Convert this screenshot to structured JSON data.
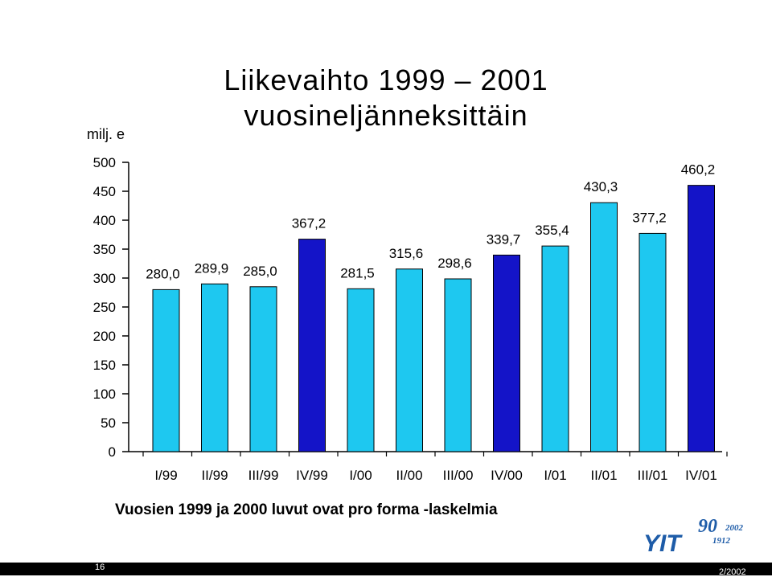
{
  "title_line1": "Liikevaihto 1999 – 2001",
  "title_line2": "vuosineljänneksittäin",
  "unit": "milj. e",
  "footnote": "Vuosien 1999 ja 2000 luvut ovat pro forma -laskelmia",
  "page_number": "16",
  "footer_date": "2/2002",
  "logo": {
    "text": "YIT",
    "anniversary": "90",
    "years_top": "2002",
    "years_bottom": "1912"
  },
  "colors": {
    "light_bar": "#1ec8f0",
    "dark_bar": "#1414c8",
    "logo_blue": "#1e5ca8"
  },
  "chart_data": {
    "type": "bar",
    "title": "Liikevaihto 1999 – 2001 vuosineljänneksittäin",
    "ylabel": "milj. e",
    "xlabel": "",
    "ylim": [
      0,
      500
    ],
    "yticks": [
      0,
      50,
      100,
      150,
      200,
      250,
      300,
      350,
      400,
      450,
      500
    ],
    "categories": [
      "I/99",
      "II/99",
      "III/99",
      "IV/99",
      "I/00",
      "II/00",
      "III/00",
      "IV/00",
      "I/01",
      "II/01",
      "III/01",
      "IV/01"
    ],
    "values": [
      280.0,
      289.9,
      285.0,
      367.2,
      281.5,
      315.6,
      298.6,
      339.7,
      355.4,
      430.3,
      377.2,
      460.2
    ],
    "value_labels": [
      "280,0",
      "289,9",
      "285,0",
      "367,2",
      "281,5",
      "315,6",
      "298,6",
      "339,7",
      "355,4",
      "430,3",
      "377,2",
      "460,2"
    ],
    "highlight": [
      false,
      false,
      false,
      true,
      false,
      false,
      false,
      true,
      false,
      false,
      false,
      true
    ],
    "grid": false,
    "legend": "none"
  }
}
